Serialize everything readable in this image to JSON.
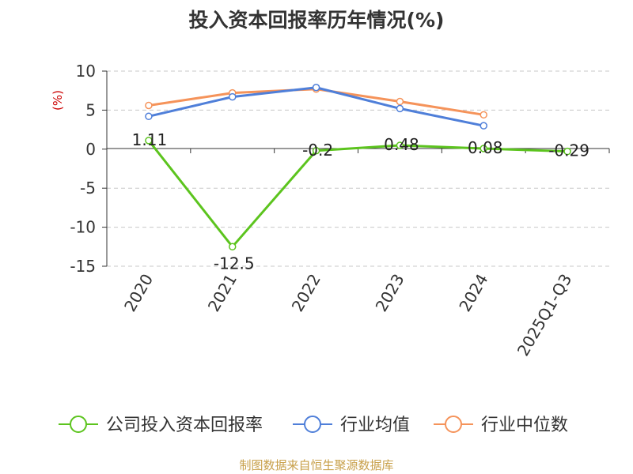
{
  "chart_data": {
    "type": "line",
    "title": "投入资本回报率历年情况(%)",
    "ylabel": "(%)",
    "xlabel": "",
    "categories": [
      "2020",
      "2021",
      "2022",
      "2023",
      "2024",
      "2025Q1-Q3"
    ],
    "ylim": [
      -15,
      10
    ],
    "yticks": [
      10,
      5,
      0,
      -5,
      -10,
      -15
    ],
    "ytick_labels": [
      "10",
      "5",
      "0",
      "-5",
      "-10",
      "-15"
    ],
    "grid": true,
    "legend_position": "bottom",
    "series": [
      {
        "name": "公司投入资本回报率",
        "color": "#5cc41e",
        "values": [
          1.11,
          -12.5,
          -0.2,
          0.48,
          0.08,
          -0.29
        ],
        "labels": [
          "1.11",
          "-12.5",
          "-0.2",
          "0.48",
          "0.08",
          "-0.29"
        ]
      },
      {
        "name": "行业均值",
        "color": "#4f7fd9",
        "values": [
          4.2,
          6.7,
          7.9,
          5.2,
          3.0,
          null
        ]
      },
      {
        "name": "行业中位数",
        "color": "#f5935a",
        "values": [
          5.6,
          7.2,
          7.7,
          6.1,
          4.4,
          null
        ]
      }
    ],
    "source": "制图数据来自恒生聚源数据库"
  }
}
